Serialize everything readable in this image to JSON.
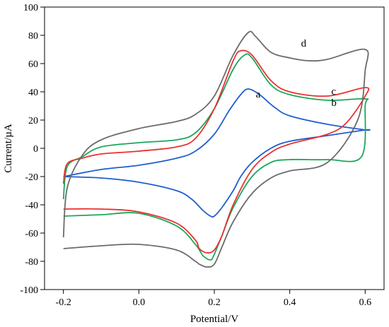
{
  "chart_data": {
    "type": "line",
    "title": "",
    "xlabel": "Potential/V",
    "ylabel": "Current/µA",
    "xlim": [
      -0.25,
      0.65
    ],
    "ylim": [
      -100,
      100
    ],
    "x_ticks": [
      -0.2,
      0.0,
      0.2,
      0.4,
      0.6
    ],
    "x_tick_labels": [
      "-0.2",
      "0.0",
      "0.2",
      "0.4",
      "0.6"
    ],
    "y_ticks": [
      -100,
      -80,
      -60,
      -40,
      -20,
      0,
      20,
      40,
      60,
      80,
      100
    ],
    "y_tick_labels": [
      "-100",
      "-80",
      "-60",
      "-40",
      "-20",
      "0",
      "20",
      "40",
      "60",
      "80",
      "100"
    ],
    "grid": false,
    "series": [
      {
        "name": "a",
        "color": "#1f5fd0",
        "label_at": [
          0.31,
          36
        ],
        "x": [
          -0.2,
          -0.1,
          0.0,
          0.1,
          0.15,
          0.2,
          0.24,
          0.27,
          0.29,
          0.32,
          0.36,
          0.4,
          0.5,
          0.6,
          0.6,
          0.5,
          0.4,
          0.35,
          0.3,
          0.27,
          0.25,
          0.22,
          0.2,
          0.19,
          0.17,
          0.14,
          0.1,
          0.0,
          -0.1,
          -0.2
        ],
        "y": [
          -20,
          -15,
          -12,
          -7,
          -2,
          10,
          27,
          38,
          42,
          38,
          29,
          23,
          17,
          13,
          13,
          9,
          5,
          0,
          -10,
          -20,
          -30,
          -42,
          -48,
          -48,
          -44,
          -36,
          -30,
          -24,
          -21,
          -20
        ]
      },
      {
        "name": "b",
        "color": "#1aa85a",
        "label_at": [
          0.51,
          30
        ],
        "x": [
          -0.2,
          -0.19,
          -0.15,
          -0.1,
          0.0,
          0.1,
          0.15,
          0.2,
          0.25,
          0.28,
          0.3,
          0.35,
          0.4,
          0.5,
          0.6,
          0.6,
          0.59,
          0.5,
          0.4,
          0.35,
          0.3,
          0.25,
          0.22,
          0.2,
          0.19,
          0.17,
          0.15,
          0.1,
          0.0,
          -0.1,
          -0.2
        ],
        "y": [
          -36,
          -13,
          -6,
          1,
          4,
          6,
          11,
          28,
          56,
          66,
          64,
          45,
          38,
          34,
          35,
          30,
          -6,
          -8,
          -8,
          -10,
          -20,
          -42,
          -62,
          -75,
          -79,
          -76,
          -68,
          -55,
          -46,
          -47,
          -48
        ]
      },
      {
        "name": "c",
        "color": "#e8322f",
        "label_at": [
          0.51,
          38
        ],
        "x": [
          -0.2,
          -0.19,
          -0.15,
          -0.1,
          0.0,
          0.1,
          0.15,
          0.2,
          0.25,
          0.27,
          0.3,
          0.35,
          0.4,
          0.5,
          0.6,
          0.6,
          0.55,
          0.5,
          0.4,
          0.35,
          0.3,
          0.25,
          0.22,
          0.2,
          0.18,
          0.16,
          0.15,
          0.1,
          0.0,
          -0.1,
          -0.2
        ],
        "y": [
          -25,
          -11,
          -7,
          -4,
          -2,
          1,
          7,
          28,
          62,
          69,
          66,
          48,
          40,
          37,
          43,
          37,
          18,
          10,
          3,
          -3,
          -15,
          -40,
          -62,
          -72,
          -74,
          -71,
          -65,
          -53,
          -45,
          -43,
          -43
        ]
      },
      {
        "name": "d",
        "color": "#6b6b6b",
        "label_at": [
          0.43,
          72
        ],
        "x": [
          -0.2,
          -0.19,
          -0.15,
          -0.1,
          0.0,
          0.1,
          0.15,
          0.2,
          0.25,
          0.29,
          0.31,
          0.35,
          0.4,
          0.45,
          0.5,
          0.6,
          0.6,
          0.58,
          0.5,
          0.4,
          0.35,
          0.3,
          0.25,
          0.22,
          0.2,
          0.18,
          0.16,
          0.15,
          0.1,
          0.0,
          -0.1,
          -0.2
        ],
        "y": [
          -63,
          -28,
          -5,
          6,
          14,
          19,
          24,
          37,
          66,
          82,
          79,
          68,
          64,
          62,
          63,
          70,
          55,
          20,
          -10,
          -16,
          -21,
          -32,
          -52,
          -70,
          -82,
          -84,
          -82,
          -80,
          -72,
          -68,
          -69,
          -71
        ]
      }
    ]
  }
}
